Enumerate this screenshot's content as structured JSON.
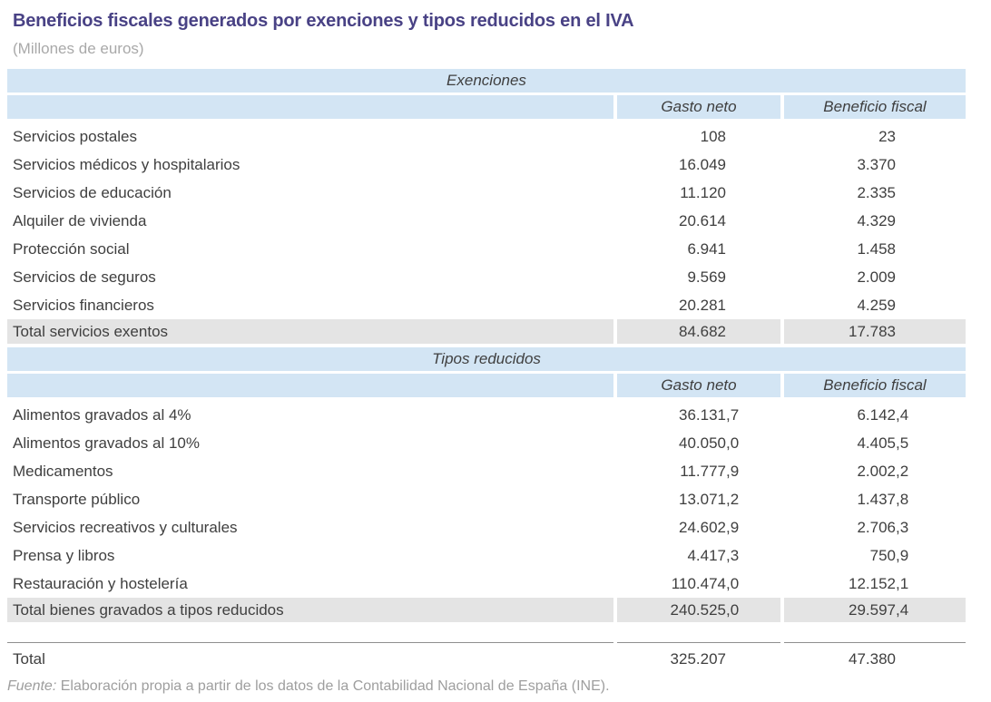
{
  "page": {
    "title": "Beneficios fiscales generados por exenciones y tipos reducidos en el IVA",
    "subtitle": "(Millones de euros)"
  },
  "colors": {
    "title_purple": "#494285",
    "band_blue": "#d3e5f4",
    "total_gray": "#e4e4e4",
    "body_text": "#3f3f3f",
    "muted_gray": "#a9a9a9"
  },
  "table": {
    "sections": [
      {
        "name": "Exenciones",
        "columns": [
          "Gasto neto",
          "Beneficio fiscal"
        ],
        "rows": [
          {
            "label": "Servicios postales",
            "gasto_neto": "108",
            "beneficio_fiscal": "23"
          },
          {
            "label": "Servicios médicos y hospitalarios",
            "gasto_neto": "16.049",
            "beneficio_fiscal": "3.370"
          },
          {
            "label": "Servicios de educación",
            "gasto_neto": "11.120",
            "beneficio_fiscal": "2.335"
          },
          {
            "label": "Alquiler de vivienda",
            "gasto_neto": "20.614",
            "beneficio_fiscal": "4.329"
          },
          {
            "label": "Protección social",
            "gasto_neto": "6.941",
            "beneficio_fiscal": "1.458"
          },
          {
            "label": "Servicios de seguros",
            "gasto_neto": "9.569",
            "beneficio_fiscal": "2.009"
          },
          {
            "label": "Servicios financieros",
            "gasto_neto": "20.281",
            "beneficio_fiscal": "4.259"
          }
        ],
        "total": {
          "label": "Total servicios exentos",
          "gasto_neto": "84.682",
          "beneficio_fiscal": "17.783"
        }
      },
      {
        "name": "Tipos reducidos",
        "columns": [
          "Gasto neto",
          "Beneficio fiscal"
        ],
        "rows": [
          {
            "label": "Alimentos gravados al 4%",
            "gasto_neto": "36.131,7",
            "beneficio_fiscal": "6.142,4"
          },
          {
            "label": "Alimentos gravados al 10%",
            "gasto_neto": "40.050,0",
            "beneficio_fiscal": "4.405,5"
          },
          {
            "label": "Medicamentos",
            "gasto_neto": "11.777,9",
            "beneficio_fiscal": "2.002,2"
          },
          {
            "label": "Transporte público",
            "gasto_neto": "13.071,2",
            "beneficio_fiscal": "1.437,8"
          },
          {
            "label": "Servicios recreativos y culturales",
            "gasto_neto": "24.602,9",
            "beneficio_fiscal": "2.706,3"
          },
          {
            "label": "Prensa y libros",
            "gasto_neto": "4.417,3",
            "beneficio_fiscal": "750,9"
          },
          {
            "label": "Restauración y hostelería",
            "gasto_neto": "110.474,0",
            "beneficio_fiscal": "12.152,1"
          }
        ],
        "total": {
          "label": "Total bienes gravados a tipos reducidos",
          "gasto_neto": "240.525,0",
          "beneficio_fiscal": "29.597,4"
        }
      }
    ],
    "grand_total": {
      "label": "Total",
      "gasto_neto": "325.207",
      "beneficio_fiscal": "47.380"
    }
  },
  "source": {
    "prefix": "Fuente:",
    "text": "Elaboración propia a partir de los datos de la Contabilidad Nacional de España (INE)."
  }
}
